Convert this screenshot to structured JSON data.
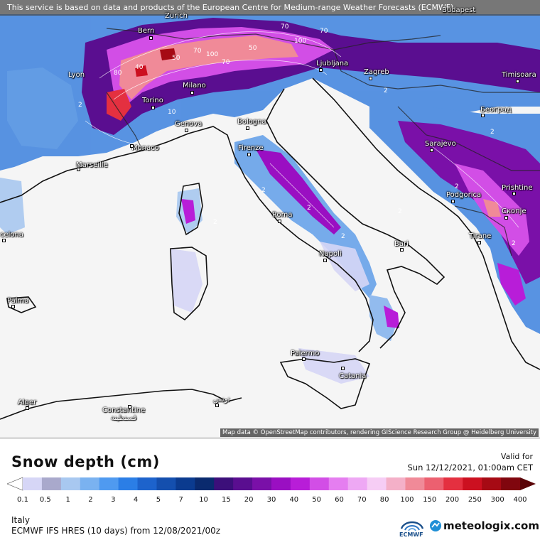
{
  "disclaimer": "This service is based on data and products of the European Centre for Medium-range Weather Forecasts (ECMWF)",
  "attribution": "Map data © OpenStreetMap contributors, rendering GIScience Research Group @ Heidelberg University",
  "cities": [
    {
      "id": "budapest",
      "name": "Budapest"
    },
    {
      "id": "zurich",
      "name": "Zurich"
    },
    {
      "id": "bern",
      "name": "Bern"
    },
    {
      "id": "lyon",
      "name": "Lyon"
    },
    {
      "id": "milano",
      "name": "Milano"
    },
    {
      "id": "torino",
      "name": "Torino"
    },
    {
      "id": "genova",
      "name": "Genova"
    },
    {
      "id": "bologna",
      "name": "Bologna"
    },
    {
      "id": "ljubljana",
      "name": "Ljubljana"
    },
    {
      "id": "zagreb",
      "name": "Zagreb"
    },
    {
      "id": "timisoara",
      "name": "Timisoara"
    },
    {
      "id": "beograd",
      "name": "Београд"
    },
    {
      "id": "monaco",
      "name": "Monaco"
    },
    {
      "id": "marseille",
      "name": "Marseille"
    },
    {
      "id": "firenze",
      "name": "Firenze"
    },
    {
      "id": "sarajevo",
      "name": "Sarajevo"
    },
    {
      "id": "podgorica",
      "name": "Podgorica"
    },
    {
      "id": "prishtine",
      "name": "Prishtine"
    },
    {
      "id": "skopje",
      "name": "Скопје"
    },
    {
      "id": "roma",
      "name": "Roma"
    },
    {
      "id": "barcelona",
      "name": "celona"
    },
    {
      "id": "tirane",
      "name": "Tirane"
    },
    {
      "id": "bari",
      "name": "Bari"
    },
    {
      "id": "napoli",
      "name": "Napoli"
    },
    {
      "id": "palma",
      "name": "Palma"
    },
    {
      "id": "palermo",
      "name": "Palermo"
    },
    {
      "id": "catania",
      "name": "Catania"
    },
    {
      "id": "alger",
      "name": "Alger"
    },
    {
      "id": "constantine",
      "name": "Constantine"
    },
    {
      "id": "constantine_ar",
      "name": "قسنطينة"
    },
    {
      "id": "tunis",
      "name": "تونس"
    }
  ],
  "contour_labels": [
    "70",
    "100",
    "70",
    "50",
    "70",
    "100",
    "70",
    "50",
    "80",
    "40",
    "10",
    "2",
    "2",
    "2",
    "2",
    "2",
    "2",
    "2",
    "2",
    "2",
    "2"
  ],
  "legend": {
    "title": "Snow depth (cm)",
    "valid_for": "Valid for",
    "valid_date": "Sun 12/12/2021, 01:00am CET",
    "region": "Italy",
    "model_info": "ECMWF IFS HRES (10 days) from 12/08/2021/00z",
    "colors": [
      "#ffffff",
      "#d6d6f6",
      "#a9a9cc",
      "#a8c8f0",
      "#7ab2f0",
      "#4f9af0",
      "#2b7ee6",
      "#1d63cc",
      "#144fae",
      "#0b3b8f",
      "#0a2a6e",
      "#3c0f7a",
      "#5a0e90",
      "#7a10a8",
      "#9a0fc2",
      "#b81dd8",
      "#d24ee6",
      "#e57ef0",
      "#eea8f4",
      "#f6cdf5",
      "#f4b0c8",
      "#f08a98",
      "#ec6070",
      "#e43040",
      "#cc1020",
      "#a60a14",
      "#80060e",
      "#5a0408"
    ],
    "ticks": [
      "0.1",
      "0.5",
      "1",
      "2",
      "3",
      "4",
      "5",
      "7",
      "10",
      "15",
      "20",
      "30",
      "40",
      "50",
      "60",
      "70",
      "80",
      "100",
      "150",
      "200",
      "250",
      "300",
      "400"
    ]
  },
  "logos": {
    "ecmwf": "ECMWF",
    "meteologix": "meteologix.com"
  }
}
